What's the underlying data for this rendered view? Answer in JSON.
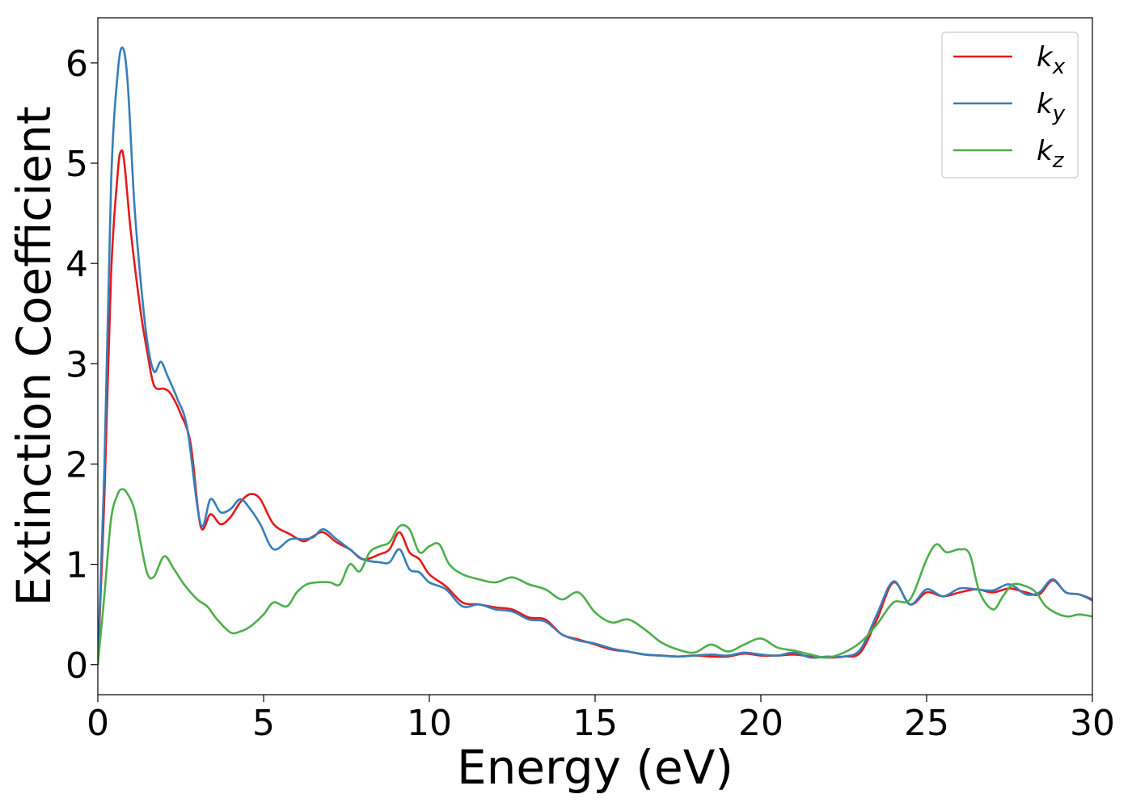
{
  "chart_data": {
    "type": "line",
    "xlabel": "Energy (eV)",
    "ylabel": "Extinction Coefficient",
    "xlim": [
      0,
      30
    ],
    "ylim": [
      -0.3,
      6.45
    ],
    "xticks": [
      0,
      5,
      10,
      15,
      20,
      25,
      30
    ],
    "yticks": [
      0,
      1,
      2,
      3,
      4,
      5,
      6
    ],
    "grid": false,
    "legend_position": "top-right",
    "series": [
      {
        "name_base": "k",
        "name_sub": "x",
        "color": "#e41a1c",
        "x": [
          0,
          0.2,
          0.4,
          0.6,
          0.7,
          0.8,
          1.0,
          1.3,
          1.5,
          1.7,
          2.0,
          2.2,
          2.5,
          2.8,
          3.1,
          3.4,
          3.7,
          4.0,
          4.3,
          4.6,
          4.9,
          5.3,
          5.8,
          6.2,
          6.5,
          6.8,
          7.2,
          7.6,
          8.0,
          8.5,
          8.8,
          9.1,
          9.4,
          9.7,
          10.0,
          10.5,
          11.0,
          11.5,
          12.0,
          12.5,
          13.0,
          13.5,
          14.0,
          14.5,
          15.0,
          15.5,
          16.0,
          16.5,
          17.0,
          17.5,
          18.0,
          18.5,
          19.0,
          19.5,
          20.0,
          20.5,
          21.0,
          21.5,
          22.0,
          22.5,
          23.0,
          23.5,
          24.0,
          24.5,
          25.0,
          25.5,
          26.0,
          26.5,
          27.0,
          27.5,
          28.0,
          28.4,
          28.8,
          29.2,
          29.6,
          30.0
        ],
        "y": [
          0,
          1.7,
          3.9,
          4.9,
          5.12,
          5.0,
          4.3,
          3.5,
          3.1,
          2.78,
          2.75,
          2.7,
          2.5,
          2.2,
          1.38,
          1.5,
          1.4,
          1.47,
          1.62,
          1.7,
          1.65,
          1.4,
          1.3,
          1.23,
          1.28,
          1.32,
          1.22,
          1.15,
          1.05,
          1.1,
          1.15,
          1.32,
          1.12,
          1.05,
          0.9,
          0.78,
          0.62,
          0.6,
          0.57,
          0.55,
          0.47,
          0.45,
          0.3,
          0.25,
          0.2,
          0.15,
          0.13,
          0.1,
          0.09,
          0.08,
          0.09,
          0.08,
          0.08,
          0.11,
          0.09,
          0.09,
          0.1,
          0.08,
          0.07,
          0.08,
          0.12,
          0.45,
          0.82,
          0.6,
          0.72,
          0.68,
          0.72,
          0.75,
          0.72,
          0.76,
          0.72,
          0.7,
          0.84,
          0.72,
          0.7,
          0.65
        ]
      },
      {
        "name_base": "k",
        "name_sub": "y",
        "color": "#377eb8",
        "x": [
          0,
          0.2,
          0.4,
          0.6,
          0.75,
          0.9,
          1.1,
          1.3,
          1.5,
          1.7,
          1.9,
          2.1,
          2.4,
          2.7,
          3.1,
          3.4,
          3.7,
          4.0,
          4.3,
          4.6,
          4.9,
          5.3,
          5.8,
          6.2,
          6.5,
          6.8,
          7.2,
          7.6,
          8.0,
          8.5,
          8.8,
          9.1,
          9.4,
          9.7,
          10.0,
          10.5,
          11.0,
          11.5,
          12.0,
          12.5,
          13.0,
          13.5,
          14.0,
          14.5,
          15.0,
          15.5,
          16.0,
          16.5,
          17.0,
          17.5,
          18.0,
          18.5,
          19.0,
          19.5,
          20.0,
          20.5,
          21.0,
          21.5,
          22.0,
          22.5,
          23.0,
          23.5,
          24.0,
          24.5,
          25.0,
          25.5,
          26.0,
          26.5,
          27.0,
          27.5,
          28.0,
          28.4,
          28.8,
          29.2,
          29.6,
          30.0
        ],
        "y": [
          0,
          2.0,
          4.8,
          5.9,
          6.15,
          5.8,
          4.6,
          3.8,
          3.2,
          2.92,
          3.02,
          2.88,
          2.65,
          2.35,
          1.4,
          1.65,
          1.52,
          1.55,
          1.65,
          1.55,
          1.4,
          1.15,
          1.25,
          1.25,
          1.27,
          1.35,
          1.25,
          1.15,
          1.05,
          1.02,
          1.02,
          1.15,
          0.95,
          0.92,
          0.82,
          0.75,
          0.58,
          0.6,
          0.55,
          0.53,
          0.45,
          0.43,
          0.3,
          0.24,
          0.21,
          0.16,
          0.13,
          0.1,
          0.09,
          0.08,
          0.09,
          0.1,
          0.09,
          0.12,
          0.1,
          0.09,
          0.12,
          0.07,
          0.08,
          0.08,
          0.15,
          0.5,
          0.83,
          0.6,
          0.75,
          0.68,
          0.76,
          0.75,
          0.74,
          0.8,
          0.7,
          0.72,
          0.85,
          0.72,
          0.7,
          0.64
        ]
      },
      {
        "name_base": "k",
        "name_sub": "z",
        "color": "#4daf4a",
        "x": [
          0,
          0.2,
          0.4,
          0.6,
          0.75,
          0.9,
          1.1,
          1.3,
          1.5,
          1.7,
          2.0,
          2.3,
          2.6,
          3.0,
          3.3,
          3.6,
          4.0,
          4.3,
          4.6,
          5.0,
          5.3,
          5.7,
          6.0,
          6.3,
          6.6,
          7.0,
          7.3,
          7.6,
          7.9,
          8.2,
          8.5,
          8.8,
          9.1,
          9.4,
          9.7,
          10.0,
          10.3,
          10.6,
          11.0,
          11.5,
          12.0,
          12.5,
          13.0,
          13.5,
          14.0,
          14.5,
          15.0,
          15.5,
          16.0,
          16.5,
          17.0,
          17.5,
          18.0,
          18.5,
          19.0,
          19.5,
          20.0,
          20.5,
          21.0,
          21.5,
          22.0,
          22.5,
          23.0,
          23.5,
          24.0,
          24.5,
          25.0,
          25.3,
          25.6,
          26.0,
          26.3,
          26.6,
          27.0,
          27.3,
          27.6,
          28.0,
          28.3,
          28.6,
          29.0,
          29.3,
          29.6,
          30.0
        ],
        "y": [
          0,
          0.7,
          1.45,
          1.7,
          1.75,
          1.7,
          1.55,
          1.2,
          0.9,
          0.88,
          1.08,
          0.95,
          0.8,
          0.65,
          0.58,
          0.45,
          0.32,
          0.33,
          0.38,
          0.5,
          0.62,
          0.58,
          0.72,
          0.8,
          0.82,
          0.82,
          0.8,
          1.0,
          0.93,
          1.12,
          1.18,
          1.22,
          1.38,
          1.35,
          1.12,
          1.18,
          1.2,
          1.0,
          0.9,
          0.85,
          0.82,
          0.87,
          0.8,
          0.75,
          0.65,
          0.72,
          0.52,
          0.42,
          0.45,
          0.35,
          0.22,
          0.15,
          0.12,
          0.2,
          0.13,
          0.2,
          0.26,
          0.17,
          0.14,
          0.1,
          0.07,
          0.12,
          0.22,
          0.4,
          0.62,
          0.65,
          1.05,
          1.2,
          1.12,
          1.15,
          1.1,
          0.72,
          0.55,
          0.68,
          0.8,
          0.78,
          0.72,
          0.58,
          0.5,
          0.48,
          0.5,
          0.48
        ]
      }
    ]
  }
}
